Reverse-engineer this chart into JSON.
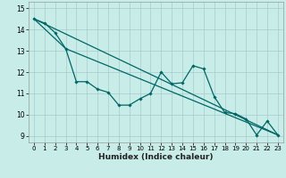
{
  "title": "",
  "xlabel": "Humidex (Indice chaleur)",
  "ylabel": "",
  "background_color": "#c8ece8",
  "grid_color": "#a8cccc",
  "line_color": "#006666",
  "xlim": [
    -0.5,
    23.5
  ],
  "ylim": [
    8.7,
    15.3
  ],
  "yticks": [
    9,
    10,
    11,
    12,
    13,
    14,
    15
  ],
  "xticks": [
    0,
    1,
    2,
    3,
    4,
    5,
    6,
    7,
    8,
    9,
    10,
    11,
    12,
    13,
    14,
    15,
    16,
    17,
    18,
    19,
    20,
    21,
    22,
    23
  ],
  "series1_x": [
    0,
    1,
    2,
    3,
    4,
    5,
    6,
    7,
    8,
    9,
    10,
    11,
    12,
    13,
    14,
    15,
    16,
    17,
    18,
    19,
    20,
    21,
    22,
    23
  ],
  "series1_y": [
    14.5,
    14.3,
    13.85,
    13.1,
    11.55,
    11.55,
    11.2,
    11.05,
    10.45,
    10.45,
    10.75,
    11.0,
    12.0,
    11.45,
    11.5,
    12.3,
    12.15,
    10.85,
    10.1,
    10.05,
    9.8,
    9.05,
    9.7,
    9.05
  ],
  "series2_x": [
    0,
    23
  ],
  "series2_y": [
    14.5,
    9.05
  ],
  "series3_x": [
    0,
    3,
    23
  ],
  "series3_y": [
    14.5,
    13.1,
    9.05
  ]
}
